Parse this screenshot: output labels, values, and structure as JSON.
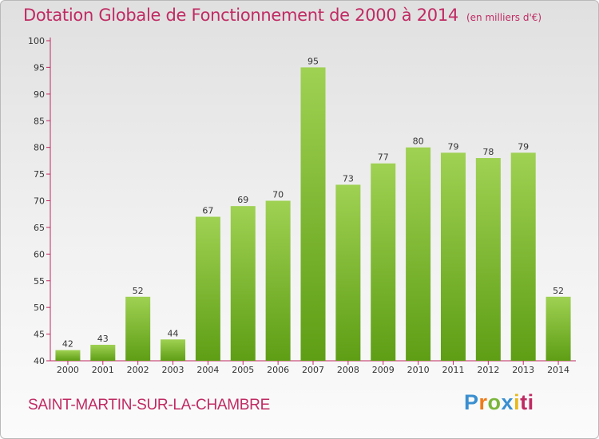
{
  "chart_data": {
    "type": "bar",
    "title": "Dotation Globale de Fonctionnement de 2000 à 2014",
    "subtitle": "(en milliers d'€)",
    "categories": [
      "2000",
      "2001",
      "2002",
      "2003",
      "2004",
      "2005",
      "2006",
      "2007",
      "2008",
      "2009",
      "2010",
      "2011",
      "2012",
      "2013",
      "2014"
    ],
    "values": [
      42,
      43,
      52,
      44,
      67,
      69,
      70,
      95,
      73,
      77,
      80,
      79,
      78,
      79,
      52
    ],
    "ylim": [
      40,
      100
    ],
    "yticks": [
      40,
      45,
      50,
      55,
      60,
      65,
      70,
      75,
      80,
      85,
      90,
      95,
      100
    ],
    "xlabel": "",
    "ylabel": "",
    "grid": false,
    "colors": {
      "bar_light": "#9fd152",
      "bar_dark": "#5e9e15",
      "axis": "#c02a62",
      "text": "#333333"
    }
  },
  "commune": "SAINT-MARTIN-SUR-LA-CHAMBRE",
  "logo": {
    "letters": [
      "P",
      "r",
      "o",
      "x",
      "i",
      "ti"
    ]
  }
}
